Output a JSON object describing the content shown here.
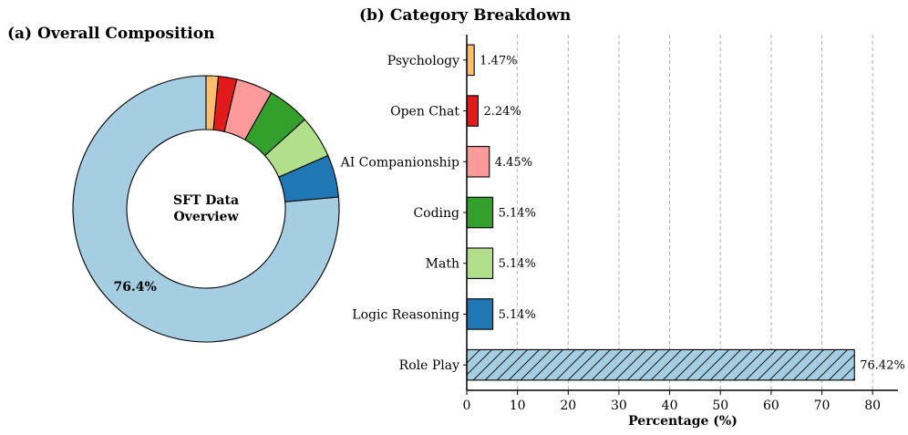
{
  "chart_data": [
    {
      "type": "pie",
      "subtype": "donut",
      "title": "(a) Overall Composition",
      "center_text": [
        "SFT Data",
        "Overview"
      ],
      "slices": [
        {
          "label": "Role Play",
          "value": 76.42,
          "color": "#a6cee3",
          "display_label": "76.4%"
        },
        {
          "label": "Logic Reasoning",
          "value": 5.14,
          "color": "#1f78b4"
        },
        {
          "label": "Math",
          "value": 5.14,
          "color": "#b2df8a"
        },
        {
          "label": "Coding",
          "value": 5.14,
          "color": "#33a02c"
        },
        {
          "label": "AI Companionship",
          "value": 4.45,
          "color": "#fb9a99"
        },
        {
          "label": "Open Chat",
          "value": 2.24,
          "color": "#e31a1c"
        },
        {
          "label": "Psychology",
          "value": 1.47,
          "color": "#fdbf6f"
        }
      ],
      "start_angle_deg": 90,
      "direction": "counterclockwise"
    },
    {
      "type": "bar",
      "orientation": "horizontal",
      "title": "(b) Category Breakdown",
      "categories": [
        "Psychology",
        "Open Chat",
        "AI Companionship",
        "Coding",
        "Math",
        "Logic Reasoning",
        "Role Play"
      ],
      "values": [
        1.47,
        2.24,
        4.45,
        5.14,
        5.14,
        5.14,
        76.42
      ],
      "value_labels": [
        "1.47%",
        "2.24%",
        "4.45%",
        "5.14%",
        "5.14%",
        "5.14%",
        "76.42%"
      ],
      "colors": [
        "#fdbf6f",
        "#e31a1c",
        "#fb9a99",
        "#33a02c",
        "#b2df8a",
        "#1f78b4",
        "#a6cee3"
      ],
      "hatched": [
        false,
        false,
        false,
        false,
        false,
        false,
        true
      ],
      "xlabel": "Percentage (%)",
      "ylabel": "",
      "xlim": [
        0,
        85
      ],
      "xticks": [
        0,
        10,
        20,
        30,
        40,
        50,
        60,
        70,
        80
      ],
      "grid": "vertical-dashed",
      "legend": "none"
    }
  ]
}
